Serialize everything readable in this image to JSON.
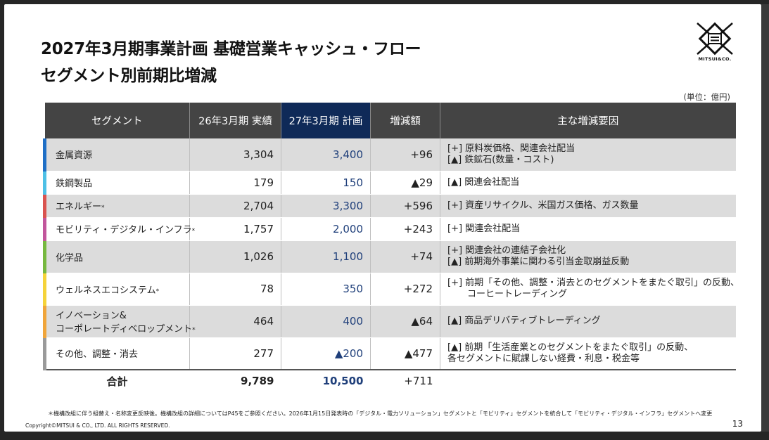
{
  "title": {
    "line1": "2027年3月期事業計画 基礎営業キャッシュ・フロー",
    "line2": "セグメント別前期比増減"
  },
  "logo": {
    "text": "MITSUI&CO."
  },
  "unit": "(単位：億円)",
  "table": {
    "headers": [
      "セグメント",
      "26年3月期 実績",
      "27年3月期 計画",
      "増減額",
      "主な増減要因"
    ],
    "rows": [
      {
        "segment": "金属資源",
        "mark": "",
        "actual": "3,304",
        "plan": "3,400",
        "diff": "+96",
        "color": "#1f6fc6",
        "reasons": [
          "[+] 原料炭価格、関連会社配当",
          "[▲] 鉄鉱石(数量・コスト)"
        ]
      },
      {
        "segment": "鉄鋼製品",
        "mark": "",
        "actual": "179",
        "plan": "150",
        "diff": "▲29",
        "color": "#4ec0e6",
        "reasons": [
          "[▲] 関連会社配当"
        ]
      },
      {
        "segment": "エネルギー",
        "mark": "*",
        "actual": "2,704",
        "plan": "3,300",
        "diff": "+596",
        "color": "#d9534f",
        "reasons": [
          "[+] 資産リサイクル、米国ガス価格、ガス数量"
        ]
      },
      {
        "segment": "モビリティ・デジタル・インフラ",
        "mark": "*",
        "actual": "1,757",
        "plan": "2,000",
        "diff": "+243",
        "color": "#c2569c",
        "reasons": [
          "[+] 関連会社配当"
        ]
      },
      {
        "segment": "化学品",
        "mark": "",
        "actual": "1,026",
        "plan": "1,100",
        "diff": "+74",
        "color": "#76b83f",
        "reasons": [
          "[+] 関連会社の連結子会社化",
          "[▲] 前期海外事業に関わる引当金取崩益反動"
        ]
      },
      {
        "segment": "ウェルネスエコシステム",
        "mark": "*",
        "actual": "78",
        "plan": "350",
        "diff": "+272",
        "color": "#f5d33a",
        "reasons": [
          "[+] 前期「その他、調整・消去とのセグメントをまたぐ取引」の反動、",
          "コーヒートレーディング"
        ]
      },
      {
        "segment": "イノベーション&",
        "segment2": "コーポレートディベロップメント",
        "mark": "*",
        "actual": "464",
        "plan": "400",
        "diff": "▲64",
        "color": "#f0a53a",
        "reasons": [
          "[▲] 商品デリバティブトレーディング"
        ]
      },
      {
        "segment": "その他、調整・消去",
        "mark": "",
        "actual": "277",
        "plan": "▲200",
        "diff": "▲477",
        "color": "#9a9a9a",
        "reasons": [
          "[▲] 前期「生活産業とのセグメントをまたぐ取引」の反動、",
          "各セグメントに賦課しない経費・利息・税金等"
        ]
      }
    ],
    "total": {
      "label": "合計",
      "actual": "9,789",
      "plan": "10,500",
      "diff": "+711"
    }
  },
  "footnote": "＊機構改組に伴う組替え・名称変更反映後。機構改組の詳細についてはP45をご参照ください。2026年1月15日発表時の「デジタル・電力ソリューション」セグメントと「モビリティ」セグメントを統合して「モビリティ・デジタル・インフラ」セグメントへ変更",
  "copyright": "Copyright©MITSUI & CO., LTD. ALL RIGHTS RESERVED.",
  "page_number": "13"
}
